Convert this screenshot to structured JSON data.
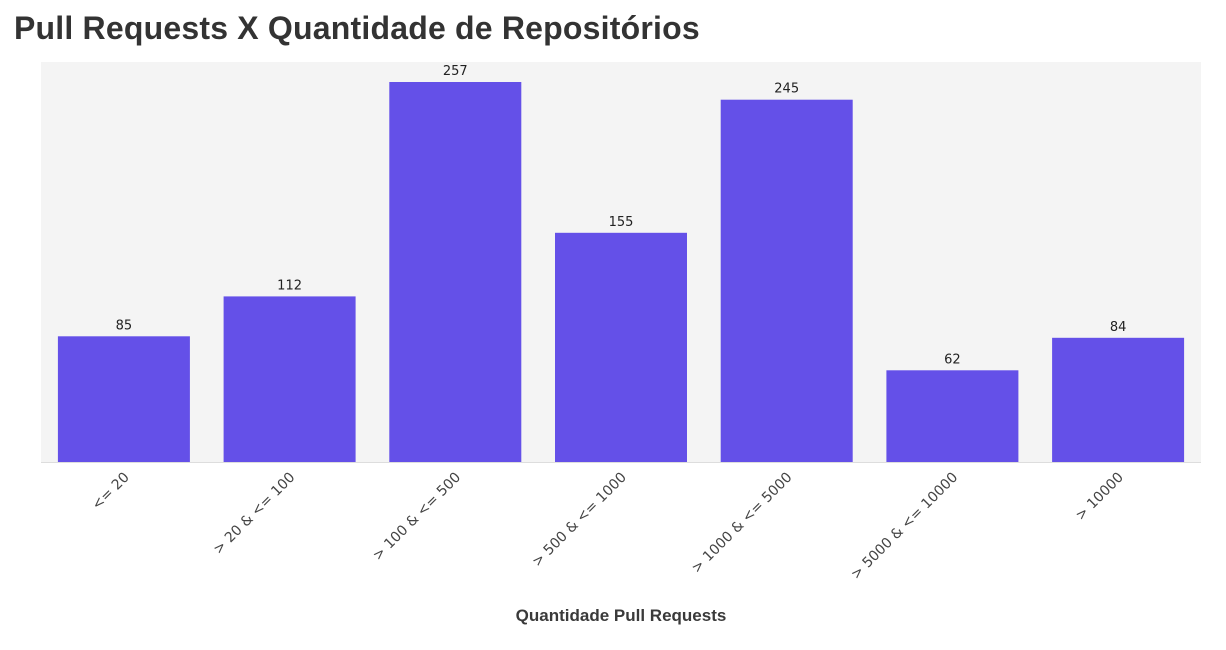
{
  "chart_data": {
    "type": "bar",
    "title": "Pull Requests X Quantidade de Repositórios",
    "xlabel": "Quantidade Pull Requests",
    "ylabel": "",
    "categories": [
      "<= 20",
      "> 20 & <= 100",
      "> 100 & <= 500",
      "> 500 & <= 1000",
      "> 1000 & <= 5000",
      "> 5000 & <= 10000",
      "> 10000"
    ],
    "values": [
      85,
      112,
      257,
      155,
      245,
      62,
      84
    ],
    "ylim": [
      0,
      270
    ],
    "grid": false,
    "data_labels": true,
    "bar_color": "#6450e8",
    "plot_background": "#f4f4f4",
    "axis_line_color": "#dddddd"
  }
}
